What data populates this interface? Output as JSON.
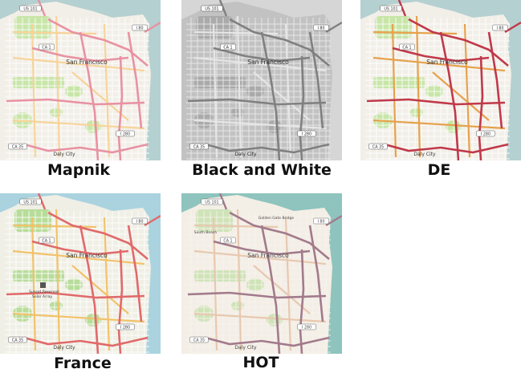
{
  "styles": [
    {
      "key": "mapnik",
      "label": "Mapnik",
      "colors": {
        "water": "#b5d0d0",
        "land": "#f2efe9",
        "park": "#c8e6a8",
        "major": "#e892a2",
        "secondary": "#f7d49a",
        "minor": "#ffffff",
        "text": "#333333"
      }
    },
    {
      "key": "bw",
      "label": "Black and White",
      "colors": {
        "water": "#d6d6d6",
        "land": "#c2c2c2",
        "park": "#aaaaaa",
        "major": "#808080",
        "secondary": "#e6e6e6",
        "minor": "#ededed",
        "text": "#222222"
      }
    },
    {
      "key": "de",
      "label": "DE",
      "colors": {
        "water": "#b5d0d0",
        "land": "#f2efe9",
        "park": "#c8e6a8",
        "major": "#c0394a",
        "secondary": "#e6a24c",
        "minor": "#ffffff",
        "text": "#333333"
      }
    },
    {
      "key": "france",
      "label": "France",
      "colors": {
        "water": "#aad3df",
        "land": "#f0efe6",
        "park": "#b8dd9a",
        "major": "#e06a6a",
        "secondary": "#f2c26a",
        "minor": "#ffffff",
        "text": "#333333"
      }
    },
    {
      "key": "hot",
      "label": "HOT",
      "colors": {
        "water": "#8ec4bd",
        "land": "#f3eee6",
        "park": "#cfe3b8",
        "major": "#a27a8c",
        "secondary": "#e8c8b0",
        "minor": "#f8f4ee",
        "text": "#444444"
      }
    }
  ],
  "map_labels": {
    "city": "San Francisco",
    "daly_city": "Daly City",
    "golden_gate": "Golden Gate Bridge",
    "south_beach": "South Beach",
    "sunset_reservoir": "Sunset Reservoir",
    "solar_array": "Solar Array"
  },
  "route_shields": {
    "us101": "US 101",
    "ca1": "CA 1",
    "ca35": "CA 35",
    "i80": "I 80",
    "i280": "I 280"
  }
}
